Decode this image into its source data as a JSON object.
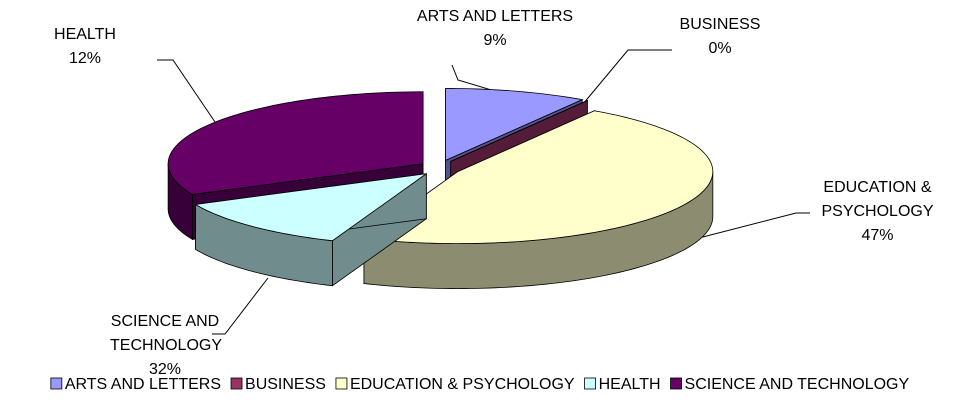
{
  "chart_data": {
    "type": "pie",
    "categories": [
      "ARTS AND LETTERS",
      "BUSINESS",
      "EDUCATION & PSYCHOLOGY",
      "HEALTH",
      "SCIENCE AND TECHNOLOGY"
    ],
    "values": [
      9,
      0,
      47,
      12,
      32
    ],
    "value_labels": [
      "9%",
      "0%",
      "47%",
      "12%",
      "32%"
    ],
    "colors": [
      "#9999ff",
      "#993366",
      "#ffffcc",
      "#ccffff",
      "#660066"
    ],
    "legend": "bottom"
  }
}
